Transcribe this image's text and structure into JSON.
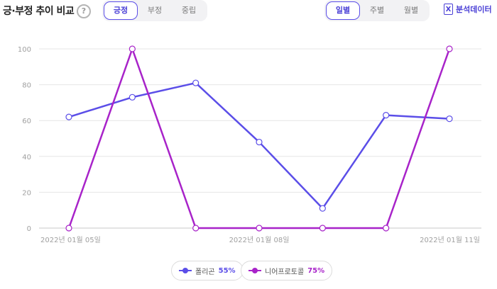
{
  "header": {
    "title": "긍·부정 추이 비교",
    "help_glyph": "?",
    "sentiment_tabs": [
      "긍정",
      "부정",
      "중립"
    ],
    "sentiment_active": 0,
    "period_tabs": [
      "일별",
      "주별",
      "월별"
    ],
    "period_active": 0,
    "export_label": "분석데이터"
  },
  "colors": {
    "accent": "#4a3fd6",
    "series_1": "#5b4ee8",
    "series_2": "#a823c9"
  },
  "chart_data": {
    "type": "line",
    "x": [
      "2022년 01월 05일",
      "2022년 01월 06일",
      "2022년 01월 07일",
      "2022년 01월 08일",
      "2022년 01월 09일",
      "2022년 01월 10일",
      "2022년 01월 11일"
    ],
    "x_tick_labels": [
      "2022년 01월 05일",
      "2022년 01월 08일",
      "2022년 01월 11일"
    ],
    "y_ticks": [
      0,
      20,
      40,
      60,
      80,
      100
    ],
    "ylim": [
      0,
      100
    ],
    "grid": true,
    "series": [
      {
        "name": "폴리곤",
        "share": "55%",
        "values": [
          62,
          73,
          81,
          48,
          11,
          63,
          61
        ]
      },
      {
        "name": "니어프로토콜",
        "share": "75%",
        "values": [
          0,
          100,
          0,
          0,
          0,
          0,
          100
        ]
      }
    ],
    "legend_position": "bottom-center"
  }
}
